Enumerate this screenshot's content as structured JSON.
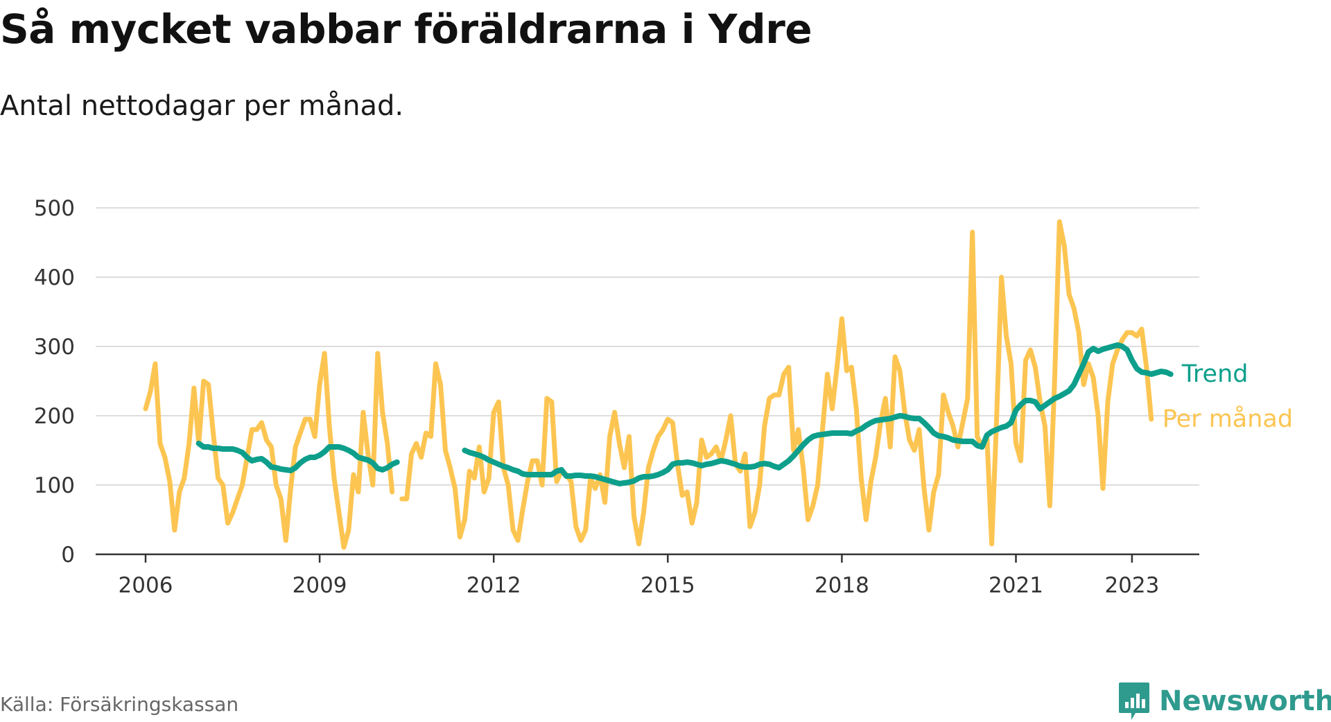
{
  "title": "Så mycket vabbar föräldrarna i Ydre",
  "subtitle": "Antal nettodagar per månad.",
  "source": "Källa: Försäkringskassan",
  "brand": {
    "name": "Newsworthy",
    "icon": "newsworthy-logo-icon"
  },
  "colors": {
    "monthly": "#fcc552",
    "trend": "#0d9f8b",
    "grid": "#dddddd",
    "axis": "#333333",
    "text": "#333333",
    "brand": "#2f9a8e"
  },
  "chart_data": {
    "type": "line",
    "title": "Så mycket vabbar föräldrarna i Ydre",
    "subtitle": "Antal nettodagar per månad.",
    "xlabel": "",
    "ylabel": "",
    "ylim": [
      0,
      500
    ],
    "yticks": [
      0,
      100,
      200,
      300,
      400,
      500
    ],
    "xticks": [
      "2006",
      "2009",
      "2012",
      "2015",
      "2018",
      "2021",
      "2023"
    ],
    "grid": true,
    "legend": "direct labels at line ends",
    "x_start": "2006-01",
    "x_end": "2023-05",
    "series": [
      {
        "name": "Per månad",
        "color": "#fcc552",
        "values": [
          210,
          235,
          275,
          160,
          140,
          105,
          35,
          90,
          110,
          160,
          240,
          160,
          250,
          245,
          175,
          110,
          100,
          45,
          60,
          80,
          100,
          140,
          180,
          180,
          190,
          165,
          155,
          100,
          80,
          20,
          95,
          155,
          175,
          195,
          195,
          170,
          245,
          290,
          185,
          110,
          60,
          10,
          35,
          115,
          90,
          205,
          145,
          100,
          290,
          205,
          160,
          90,
          null,
          80,
          80,
          145,
          160,
          140,
          175,
          170,
          275,
          245,
          150,
          125,
          95,
          25,
          50,
          120,
          110,
          155,
          90,
          110,
          205,
          220,
          125,
          100,
          35,
          20,
          65,
          105,
          135,
          135,
          100,
          225,
          220,
          105,
          120,
          115,
          105,
          40,
          20,
          35,
          110,
          95,
          115,
          75,
          170,
          205,
          160,
          125,
          170,
          55,
          15,
          60,
          125,
          150,
          170,
          180,
          195,
          190,
          130,
          85,
          90,
          45,
          75,
          165,
          140,
          145,
          155,
          135,
          165,
          200,
          130,
          120,
          145,
          40,
          60,
          100,
          185,
          225,
          230,
          230,
          260,
          270,
          150,
          180,
          125,
          50,
          70,
          100,
          180,
          260,
          210,
          270,
          340,
          265,
          270,
          210,
          110,
          50,
          105,
          140,
          190,
          225,
          155,
          285,
          265,
          205,
          165,
          150,
          180,
          95,
          35,
          90,
          115,
          230,
          205,
          185,
          155,
          190,
          225,
          465,
          170,
          155,
          170,
          15,
          195,
          400,
          315,
          275,
          160,
          135,
          280,
          295,
          270,
          220,
          185,
          70,
          250,
          480,
          445,
          375,
          355,
          320,
          245,
          275,
          255,
          200,
          95,
          220,
          275,
          295,
          310,
          320,
          320,
          315,
          325,
          270,
          195
        ],
        "notes": "monthly values from 2006-01 to 2023-05 (month 1 = 2006-01); null = gap"
      },
      {
        "name": "Trend",
        "color": "#0d9f8b",
        "values": [
          null,
          null,
          null,
          null,
          null,
          null,
          null,
          null,
          null,
          null,
          null,
          160,
          155,
          155,
          153,
          153,
          152,
          152,
          152,
          150,
          147,
          140,
          135,
          137,
          138,
          133,
          126,
          125,
          123,
          122,
          121,
          125,
          132,
          137,
          140,
          140,
          143,
          148,
          155,
          155,
          155,
          153,
          150,
          146,
          140,
          138,
          136,
          132,
          124,
          122,
          125,
          130,
          133,
          null,
          null,
          null,
          null,
          null,
          null,
          null,
          null,
          null,
          null,
          null,
          null,
          null,
          150,
          147,
          145,
          143,
          140,
          136,
          133,
          130,
          127,
          125,
          122,
          120,
          116,
          115,
          115,
          115,
          115,
          115,
          115,
          120,
          122,
          113,
          113,
          114,
          114,
          113,
          113,
          112,
          110,
          108,
          106,
          104,
          102,
          103,
          104,
          106,
          110,
          112,
          112,
          113,
          115,
          118,
          122,
          130,
          132,
          132,
          133,
          132,
          130,
          128,
          130,
          131,
          133,
          135,
          134,
          132,
          130,
          127,
          126,
          126,
          127,
          130,
          131,
          130,
          127,
          125,
          130,
          135,
          142,
          150,
          158,
          165,
          170,
          172,
          173,
          174,
          175,
          175,
          175,
          175,
          174,
          178,
          181,
          186,
          190,
          193,
          194,
          195,
          196,
          198,
          200,
          199,
          197,
          196,
          196,
          190,
          183,
          175,
          171,
          170,
          168,
          165,
          164,
          163,
          163,
          163,
          157,
          155,
          172,
          177,
          180,
          183,
          185,
          190,
          208,
          216,
          222,
          222,
          220,
          210,
          215,
          220,
          225,
          228,
          232,
          236,
          245,
          260,
          275,
          292,
          297,
          293,
          296,
          298,
          300,
          302,
          300,
          295,
          280,
          268,
          263,
          262,
          260,
          262,
          264,
          263,
          260
        ]
      }
    ]
  }
}
